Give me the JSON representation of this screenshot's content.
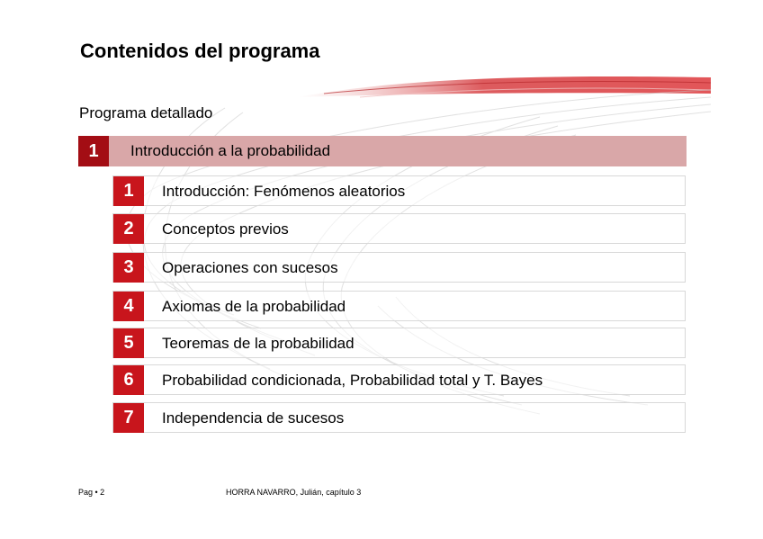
{
  "title": "Contenidos del programa",
  "subtitle": "Programa detallado",
  "chapter": {
    "number": "1",
    "label": "Introducción a la probabilidad"
  },
  "topics": [
    {
      "number": "1",
      "label": "Introducción: Fenómenos aleatorios"
    },
    {
      "number": "2",
      "label": "Conceptos previos"
    },
    {
      "number": "3",
      "label": "Operaciones con sucesos"
    },
    {
      "number": "4",
      "label": "Axiomas de la probabilidad"
    },
    {
      "number": "5",
      "label": "Teoremas de la probabilidad"
    },
    {
      "number": "6",
      "label": "Probabilidad condicionada, Probabilidad total y T. Bayes"
    },
    {
      "number": "7",
      "label": "Independencia de sucesos"
    }
  ],
  "footer": {
    "page": "Pag • 2",
    "author": "HORRA NAVARRO, Julián, capítulo 3"
  },
  "colors": {
    "chapter_number_bg": "#a30d14",
    "chapter_row_bg": "#d9a7a8",
    "topic_number_bg": "#c8151c"
  }
}
